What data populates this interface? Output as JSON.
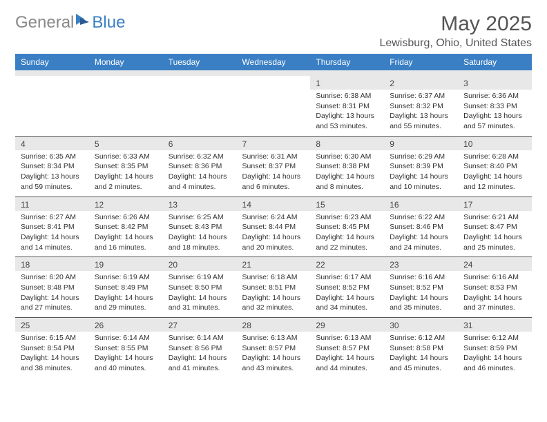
{
  "logo": {
    "text1": "General",
    "text2": "Blue"
  },
  "title": "May 2025",
  "location": "Lewisburg, Ohio, United States",
  "colors": {
    "header_bg": "#3a7fc4",
    "header_fg": "#ffffff",
    "num_bg": "#e8e8e8",
    "border": "#555555",
    "text": "#333333"
  },
  "day_names": [
    "Sunday",
    "Monday",
    "Tuesday",
    "Wednesday",
    "Thursday",
    "Friday",
    "Saturday"
  ],
  "weeks": [
    [
      null,
      null,
      null,
      null,
      {
        "n": "1",
        "sr": "6:38 AM",
        "ss": "8:31 PM",
        "dl": "13 hours and 53 minutes."
      },
      {
        "n": "2",
        "sr": "6:37 AM",
        "ss": "8:32 PM",
        "dl": "13 hours and 55 minutes."
      },
      {
        "n": "3",
        "sr": "6:36 AM",
        "ss": "8:33 PM",
        "dl": "13 hours and 57 minutes."
      }
    ],
    [
      {
        "n": "4",
        "sr": "6:35 AM",
        "ss": "8:34 PM",
        "dl": "13 hours and 59 minutes."
      },
      {
        "n": "5",
        "sr": "6:33 AM",
        "ss": "8:35 PM",
        "dl": "14 hours and 2 minutes."
      },
      {
        "n": "6",
        "sr": "6:32 AM",
        "ss": "8:36 PM",
        "dl": "14 hours and 4 minutes."
      },
      {
        "n": "7",
        "sr": "6:31 AM",
        "ss": "8:37 PM",
        "dl": "14 hours and 6 minutes."
      },
      {
        "n": "8",
        "sr": "6:30 AM",
        "ss": "8:38 PM",
        "dl": "14 hours and 8 minutes."
      },
      {
        "n": "9",
        "sr": "6:29 AM",
        "ss": "8:39 PM",
        "dl": "14 hours and 10 minutes."
      },
      {
        "n": "10",
        "sr": "6:28 AM",
        "ss": "8:40 PM",
        "dl": "14 hours and 12 minutes."
      }
    ],
    [
      {
        "n": "11",
        "sr": "6:27 AM",
        "ss": "8:41 PM",
        "dl": "14 hours and 14 minutes."
      },
      {
        "n": "12",
        "sr": "6:26 AM",
        "ss": "8:42 PM",
        "dl": "14 hours and 16 minutes."
      },
      {
        "n": "13",
        "sr": "6:25 AM",
        "ss": "8:43 PM",
        "dl": "14 hours and 18 minutes."
      },
      {
        "n": "14",
        "sr": "6:24 AM",
        "ss": "8:44 PM",
        "dl": "14 hours and 20 minutes."
      },
      {
        "n": "15",
        "sr": "6:23 AM",
        "ss": "8:45 PM",
        "dl": "14 hours and 22 minutes."
      },
      {
        "n": "16",
        "sr": "6:22 AM",
        "ss": "8:46 PM",
        "dl": "14 hours and 24 minutes."
      },
      {
        "n": "17",
        "sr": "6:21 AM",
        "ss": "8:47 PM",
        "dl": "14 hours and 25 minutes."
      }
    ],
    [
      {
        "n": "18",
        "sr": "6:20 AM",
        "ss": "8:48 PM",
        "dl": "14 hours and 27 minutes."
      },
      {
        "n": "19",
        "sr": "6:19 AM",
        "ss": "8:49 PM",
        "dl": "14 hours and 29 minutes."
      },
      {
        "n": "20",
        "sr": "6:19 AM",
        "ss": "8:50 PM",
        "dl": "14 hours and 31 minutes."
      },
      {
        "n": "21",
        "sr": "6:18 AM",
        "ss": "8:51 PM",
        "dl": "14 hours and 32 minutes."
      },
      {
        "n": "22",
        "sr": "6:17 AM",
        "ss": "8:52 PM",
        "dl": "14 hours and 34 minutes."
      },
      {
        "n": "23",
        "sr": "6:16 AM",
        "ss": "8:52 PM",
        "dl": "14 hours and 35 minutes."
      },
      {
        "n": "24",
        "sr": "6:16 AM",
        "ss": "8:53 PM",
        "dl": "14 hours and 37 minutes."
      }
    ],
    [
      {
        "n": "25",
        "sr": "6:15 AM",
        "ss": "8:54 PM",
        "dl": "14 hours and 38 minutes."
      },
      {
        "n": "26",
        "sr": "6:14 AM",
        "ss": "8:55 PM",
        "dl": "14 hours and 40 minutes."
      },
      {
        "n": "27",
        "sr": "6:14 AM",
        "ss": "8:56 PM",
        "dl": "14 hours and 41 minutes."
      },
      {
        "n": "28",
        "sr": "6:13 AM",
        "ss": "8:57 PM",
        "dl": "14 hours and 43 minutes."
      },
      {
        "n": "29",
        "sr": "6:13 AM",
        "ss": "8:57 PM",
        "dl": "14 hours and 44 minutes."
      },
      {
        "n": "30",
        "sr": "6:12 AM",
        "ss": "8:58 PM",
        "dl": "14 hours and 45 minutes."
      },
      {
        "n": "31",
        "sr": "6:12 AM",
        "ss": "8:59 PM",
        "dl": "14 hours and 46 minutes."
      }
    ]
  ]
}
